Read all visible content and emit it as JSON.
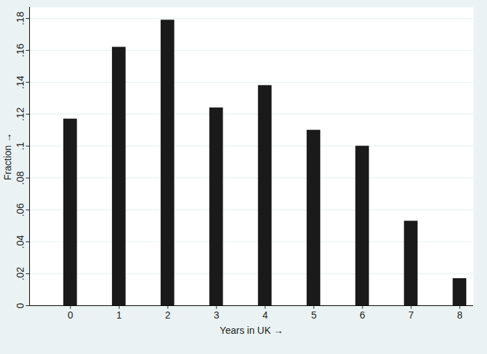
{
  "chart_data": {
    "type": "bar",
    "x_label": "Years in UK",
    "y_label": "Fraction",
    "x": [
      0,
      1,
      2,
      3,
      4,
      5,
      6,
      7,
      8
    ],
    "values": [
      0.117,
      0.162,
      0.179,
      0.124,
      0.138,
      0.11,
      0.1,
      0.053,
      0.017
    ],
    "color": "#1a1a1a",
    "xlim": [
      -0.84,
      8.28
    ],
    "xticks": [
      0,
      1,
      2,
      3,
      4,
      5,
      6,
      7,
      8
    ],
    "ylim": [
      0,
      0.187
    ],
    "yticks": [
      0,
      {
        "value": 0.02,
        "label": ".02"
      },
      {
        "value": 0.04,
        "label": ".04"
      },
      {
        "value": 0.06,
        "label": ".06"
      },
      {
        "value": 0.08,
        "label": ".08"
      },
      {
        "value": 0.1,
        "label": ".1"
      },
      {
        "value": 0.12,
        "label": ".12"
      },
      {
        "value": 0.14,
        "label": ".14"
      },
      {
        "value": 0.16,
        "label": ".16"
      },
      {
        "value": 0.18,
        "label": ".18"
      }
    ],
    "grid": true
  }
}
